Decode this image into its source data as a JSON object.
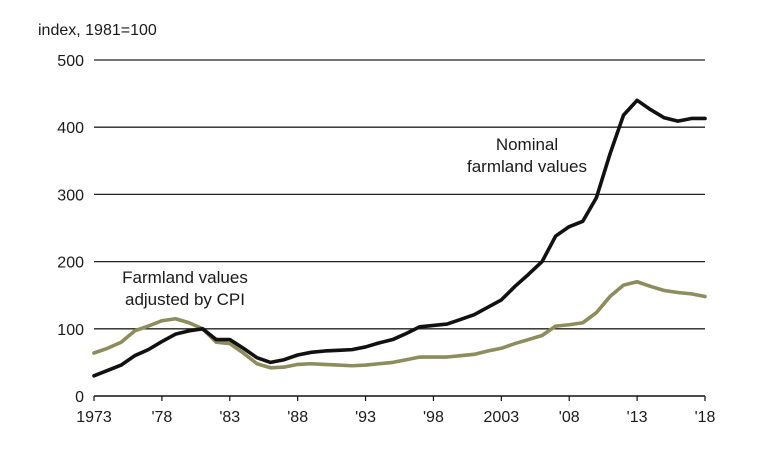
{
  "chart_data": {
    "type": "line",
    "title": "",
    "unit_label": "index, 1981=100",
    "xlabel": "",
    "ylabel": "",
    "ylim": [
      0,
      500
    ],
    "xlim": [
      1973,
      2018
    ],
    "grid": true,
    "y_ticks": [
      {
        "value": 0,
        "label": "0"
      },
      {
        "value": 100,
        "label": "100"
      },
      {
        "value": 200,
        "label": "200"
      },
      {
        "value": 300,
        "label": "300"
      },
      {
        "value": 400,
        "label": "400"
      },
      {
        "value": 500,
        "label": "500"
      }
    ],
    "x_ticks": [
      {
        "value": 1973,
        "label": "1973"
      },
      {
        "value": 1978,
        "label": "'78"
      },
      {
        "value": 1983,
        "label": "'83"
      },
      {
        "value": 1988,
        "label": "'88"
      },
      {
        "value": 1993,
        "label": "'93"
      },
      {
        "value": 1998,
        "label": "'98"
      },
      {
        "value": 2003,
        "label": "2003"
      },
      {
        "value": 2008,
        "label": "'08"
      },
      {
        "value": 2013,
        "label": "'13"
      },
      {
        "value": 2018,
        "label": "'18"
      }
    ],
    "x": [
      1973,
      1974,
      1975,
      1976,
      1977,
      1978,
      1979,
      1980,
      1981,
      1982,
      1983,
      1984,
      1985,
      1986,
      1987,
      1988,
      1989,
      1990,
      1991,
      1992,
      1993,
      1994,
      1995,
      1996,
      1997,
      1998,
      1999,
      2000,
      2001,
      2002,
      2003,
      2004,
      2005,
      2006,
      2007,
      2008,
      2009,
      2010,
      2011,
      2012,
      2013,
      2014,
      2015,
      2016,
      2017,
      2018
    ],
    "series": [
      {
        "name": "Nominal farmland values",
        "label_lines": [
          "Nominal",
          "farmland values"
        ],
        "color": "#111111",
        "values": [
          30,
          38,
          46,
          60,
          69,
          81,
          92,
          97,
          100,
          84,
          84,
          71,
          57,
          50,
          54,
          61,
          65,
          67,
          68,
          69,
          73,
          79,
          84,
          93,
          103,
          105,
          107,
          114,
          121,
          132,
          143,
          163,
          181,
          200,
          238,
          252,
          260,
          295,
          360,
          418,
          440,
          426,
          414,
          409,
          413,
          413
        ]
      },
      {
        "name": "Farmland values adjusted by CPI",
        "label_lines": [
          "Farmland values",
          "adjusted by CPI"
        ],
        "color": "#8c8c5c",
        "values": [
          64,
          71,
          80,
          97,
          104,
          112,
          115,
          109,
          100,
          80,
          78,
          64,
          48,
          42,
          43,
          47,
          48,
          47,
          46,
          45,
          46,
          48,
          50,
          54,
          58,
          58,
          58,
          60,
          62,
          67,
          71,
          78,
          84,
          90,
          104,
          106,
          109,
          124,
          148,
          165,
          170,
          163,
          157,
          154,
          152,
          148
        ]
      }
    ]
  }
}
